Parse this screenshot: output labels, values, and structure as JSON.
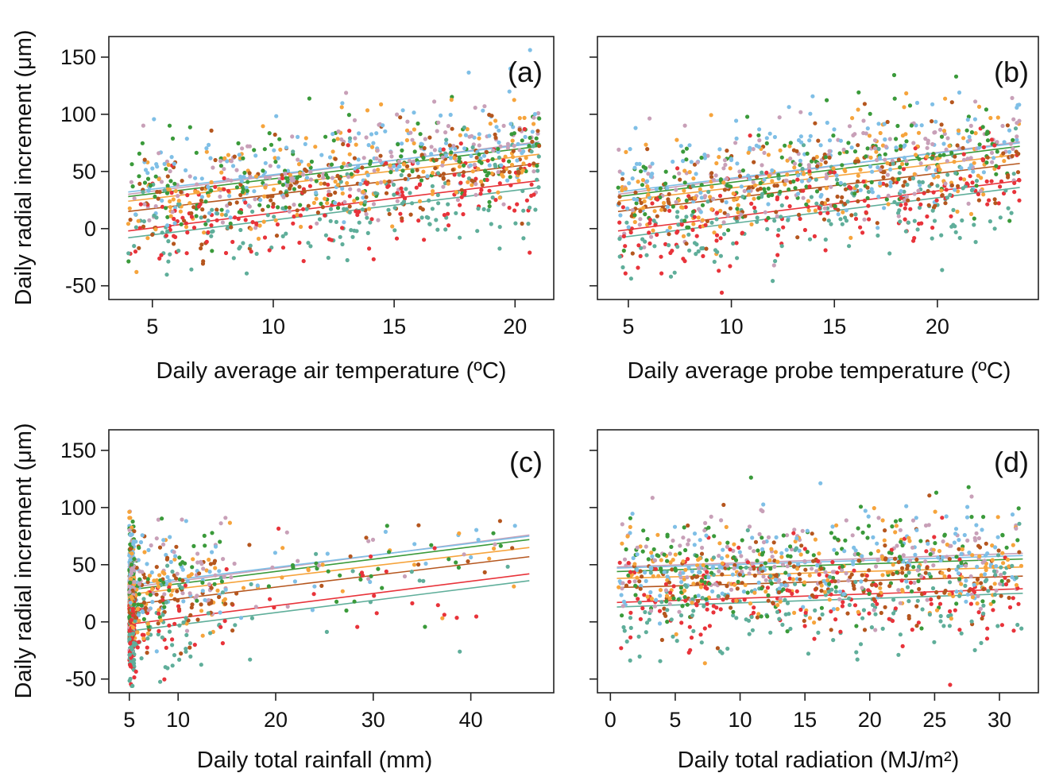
{
  "ylabel": "Daily radial increment (μm)",
  "colors": [
    "#e8333a",
    "#f6a43c",
    "#3a9a3a",
    "#7fbfe6",
    "#c8a0b8",
    "#b5561e",
    "#5fae9a"
  ],
  "chart_data": [
    {
      "type": "scatter",
      "panel": "(a)",
      "xlabel": "Daily average air temperature (ºC)",
      "ylabel": "Daily radial increment (μm)",
      "xlim": [
        3.2,
        21.6
      ],
      "ylim": [
        -62,
        168
      ],
      "xticks": [
        {
          "v": 5,
          "t": "5"
        },
        {
          "v": 10,
          "t": "10"
        },
        {
          "v": 15,
          "t": "15"
        },
        {
          "v": 20,
          "t": "20"
        }
      ],
      "yticks": [
        {
          "v": -50,
          "t": "-50"
        },
        {
          "v": 0,
          "t": "0"
        },
        {
          "v": 50,
          "t": "50"
        },
        {
          "v": 100,
          "t": "100"
        },
        {
          "v": 150,
          "t": "150"
        }
      ],
      "x_range": [
        4,
        21
      ],
      "x_distribution": "uniform",
      "slope_mode": "positive",
      "seed": 11
    },
    {
      "type": "scatter",
      "panel": "(b)",
      "xlabel": "Daily average probe temperature (ºC)",
      "ylabel": "",
      "xlim": [
        3.5,
        24.9
      ],
      "ylim": [
        -62,
        168
      ],
      "xticks": [
        {
          "v": 5,
          "t": "5"
        },
        {
          "v": 10,
          "t": "10"
        },
        {
          "v": 15,
          "t": "15"
        },
        {
          "v": 20,
          "t": "20"
        }
      ],
      "yticks": [
        {
          "v": -50,
          "t": ""
        },
        {
          "v": 0,
          "t": ""
        },
        {
          "v": 50,
          "t": ""
        },
        {
          "v": 100,
          "t": ""
        },
        {
          "v": 150,
          "t": ""
        }
      ],
      "x_range": [
        4.5,
        24
      ],
      "x_distribution": "uniform",
      "slope_mode": "positive",
      "seed": 23
    },
    {
      "type": "scatter",
      "panel": "(c)",
      "xlabel": "Daily total rainfall (mm)",
      "ylabel": "Daily radial increment (μm)",
      "xlim": [
        2.9,
        48.5
      ],
      "ylim": [
        -62,
        168
      ],
      "xticks": [
        {
          "v": 5,
          "t": "5"
        },
        {
          "v": 10,
          "t": "10"
        },
        {
          "v": 20,
          "t": "20"
        },
        {
          "v": 30,
          "t": "30"
        },
        {
          "v": 40,
          "t": "40"
        }
      ],
      "yticks": [
        {
          "v": -50,
          "t": "-50"
        },
        {
          "v": 0,
          "t": "0"
        },
        {
          "v": 50,
          "t": "50"
        },
        {
          "v": 100,
          "t": "100"
        },
        {
          "v": 150,
          "t": "150"
        }
      ],
      "x_range": [
        5,
        46
      ],
      "x_distribution": "rainfall",
      "slope_mode": "positive",
      "seed": 37
    },
    {
      "type": "scatter",
      "panel": "(d)",
      "xlabel": "Daily total radiation (MJ/m²)",
      "ylabel": "",
      "xlim": [
        -1,
        33
      ],
      "ylim": [
        -62,
        168
      ],
      "xticks": [
        {
          "v": 0,
          "t": "0"
        },
        {
          "v": 5,
          "t": "5"
        },
        {
          "v": 10,
          "t": "10"
        },
        {
          "v": 15,
          "t": "15"
        },
        {
          "v": 20,
          "t": "20"
        },
        {
          "v": 25,
          "t": "25"
        },
        {
          "v": 30,
          "t": "30"
        }
      ],
      "yticks": [
        {
          "v": -50,
          "t": ""
        },
        {
          "v": 0,
          "t": ""
        },
        {
          "v": 50,
          "t": ""
        },
        {
          "v": 100,
          "t": ""
        },
        {
          "v": 150,
          "t": ""
        }
      ],
      "x_range": [
        0.5,
        31.8
      ],
      "x_distribution": "uniform",
      "slope_mode": "flat",
      "seed": 53
    }
  ],
  "trend_lines": {
    "positive": [
      {
        "color": "#c8a0b8",
        "y_start": 30,
        "y_end": 76
      },
      {
        "color": "#7fbfe6",
        "y_start": 32,
        "y_end": 75
      },
      {
        "color": "#3a9a3a",
        "y_start": 28,
        "y_end": 72
      },
      {
        "color": "#f6a43c",
        "y_start": 24,
        "y_end": 65
      },
      {
        "color": "#b5561e",
        "y_start": 15,
        "y_end": 57
      },
      {
        "color": "#e8333a",
        "y_start": -2,
        "y_end": 42
      },
      {
        "color": "#5fae9a",
        "y_start": -8,
        "y_end": 36
      }
    ],
    "flat": [
      {
        "color": "#c8a0b8",
        "y_start": 48,
        "y_end": 60
      },
      {
        "color": "#7fbfe6",
        "y_start": 47,
        "y_end": 58
      },
      {
        "color": "#3a9a3a",
        "y_start": 44,
        "y_end": 55
      },
      {
        "color": "#f6a43c",
        "y_start": 38,
        "y_end": 48
      },
      {
        "color": "#b5561e",
        "y_start": 30,
        "y_end": 40
      },
      {
        "color": "#e8333a",
        "y_start": 17,
        "y_end": 29
      },
      {
        "color": "#5fae9a",
        "y_start": 13,
        "y_end": 25
      }
    ]
  }
}
